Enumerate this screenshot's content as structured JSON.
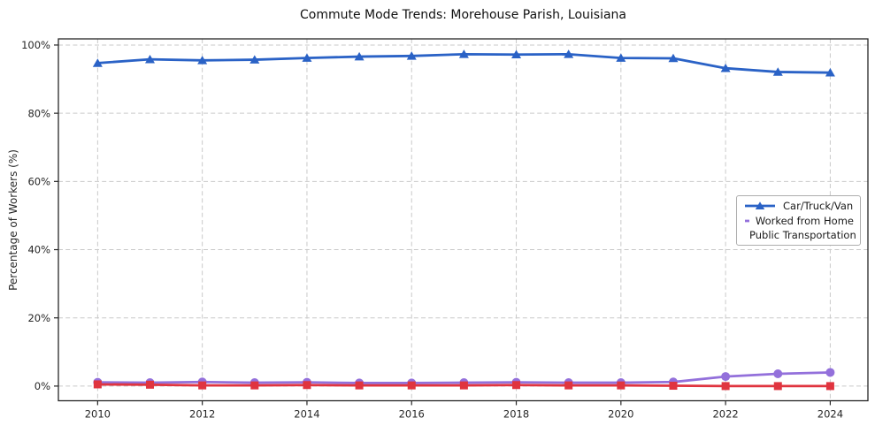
{
  "chart_data": {
    "type": "line",
    "title": "Commute Mode Trends: Morehouse Parish, Louisiana",
    "xlabel": "",
    "ylabel": "Percentage of Workers (%)",
    "x": [
      2010,
      2011,
      2012,
      2013,
      2014,
      2015,
      2016,
      2017,
      2018,
      2019,
      2020,
      2021,
      2022,
      2023,
      2024
    ],
    "series": [
      {
        "name": "Car/Truck/Van",
        "color": "#2a62c6",
        "marker": "triangle",
        "values": [
          94.7,
          95.8,
          95.5,
          95.7,
          96.2,
          96.6,
          96.8,
          97.3,
          97.2,
          97.3,
          96.2,
          96.1,
          93.2,
          92.1,
          91.9
        ]
      },
      {
        "name": "Worked from Home",
        "color": "#9370db",
        "marker": "circle",
        "values": [
          1.1,
          1.0,
          1.2,
          1.0,
          1.1,
          0.9,
          0.9,
          1.0,
          1.1,
          1.0,
          1.0,
          1.2,
          2.8,
          3.6,
          4.0
        ]
      },
      {
        "name": "Public Transportation",
        "color": "#e0343f",
        "marker": "square",
        "values": [
          0.5,
          0.4,
          0.2,
          0.2,
          0.3,
          0.2,
          0.2,
          0.2,
          0.3,
          0.2,
          0.2,
          0.1,
          0.0,
          0.0,
          0.0
        ]
      }
    ],
    "xticks": [
      2010,
      2012,
      2014,
      2016,
      2018,
      2020,
      2022,
      2024
    ],
    "yticks": [
      0,
      20,
      40,
      60,
      80,
      100
    ],
    "ytick_suffix": "%",
    "xlim": [
      2009.25,
      2024.72
    ],
    "ylim": [
      -4.3,
      101.8
    ],
    "grid": {
      "visible": true,
      "style": "dashed",
      "color": "#c9c9c9"
    },
    "legend_position": "center-right"
  },
  "colors": {
    "background": "#ffffff",
    "axis": "#262626",
    "tick_text": "#262626",
    "title_text": "#111111",
    "legend_border": "#adadad"
  }
}
